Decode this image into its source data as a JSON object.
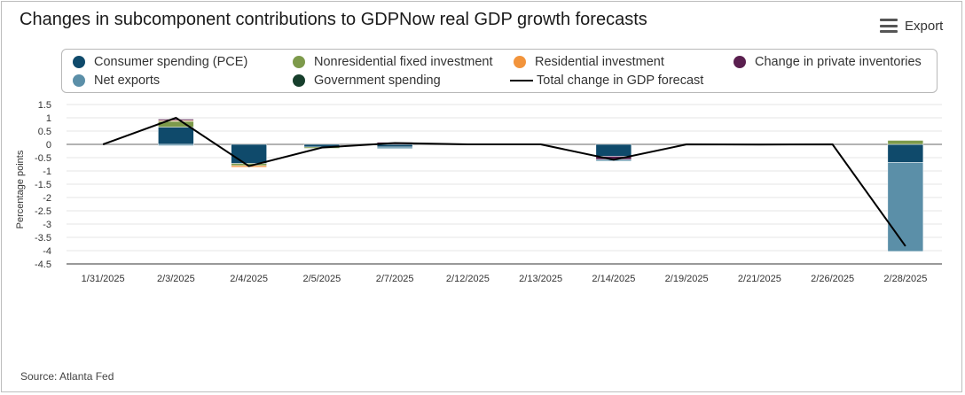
{
  "title": "Changes in subcomponent contributions to GDPNow real GDP growth forecasts",
  "export_label": "Export",
  "export_icon": "menu-icon",
  "source": "Source: Atlanta Fed",
  "legend": [
    {
      "name": "Consumer spending (PCE)",
      "color": "#0f4a6b"
    },
    {
      "name": "Nonresidential fixed investment",
      "color": "#7d9a4b"
    },
    {
      "name": "Residential investment",
      "color": "#f2943c"
    },
    {
      "name": "Change in private inventories",
      "color": "#5a1f4f"
    },
    {
      "name": "Net exports",
      "color": "#5b8fa8"
    },
    {
      "name": "Government spending",
      "color": "#173f2c"
    },
    {
      "name": "Total change in GDP forecast",
      "color": "#000000"
    }
  ],
  "chart_data": {
    "type": "bar",
    "stacked": true,
    "title": "Changes in subcomponent contributions to GDPNow real GDP growth forecasts",
    "xlabel": "",
    "ylabel": "Percentage points",
    "ylim": [
      -4.5,
      1.5
    ],
    "yticks": [
      1.5,
      1,
      0.5,
      0,
      -0.5,
      -1,
      -1.5,
      -2,
      -2.5,
      -3,
      -3.5,
      -4,
      -4.5
    ],
    "categories": [
      "1/31/2025",
      "2/3/2025",
      "2/4/2025",
      "2/5/2025",
      "2/7/2025",
      "2/12/2025",
      "2/13/2025",
      "2/14/2025",
      "2/19/2025",
      "2/21/2025",
      "2/26/2025",
      "2/28/2025"
    ],
    "series": [
      {
        "name": "Consumer spending (PCE)",
        "color": "#0f4a6b",
        "values": [
          0,
          0.65,
          -0.72,
          -0.1,
          -0.1,
          0,
          0,
          -0.45,
          0,
          0,
          0,
          -0.68
        ]
      },
      {
        "name": "Nonresidential fixed investment",
        "color": "#7d9a4b",
        "values": [
          0,
          0.22,
          -0.08,
          -0.05,
          0,
          0,
          0,
          0,
          0,
          0,
          0,
          0.15
        ]
      },
      {
        "name": "Residential investment",
        "color": "#f2943c",
        "values": [
          0,
          0.03,
          -0.06,
          0,
          0,
          0,
          0,
          0,
          0,
          0,
          0,
          0
        ]
      },
      {
        "name": "Change in private inventories",
        "color": "#5a1f4f",
        "values": [
          0,
          0.05,
          0,
          0,
          0.08,
          0,
          0,
          -0.12,
          0,
          0,
          0,
          0
        ]
      },
      {
        "name": "Net exports",
        "color": "#5b8fa8",
        "values": [
          0,
          -0.05,
          0,
          0,
          -0.06,
          0,
          0,
          -0.06,
          0,
          0,
          0,
          -3.35
        ]
      },
      {
        "name": "Government spending",
        "color": "#173f2c",
        "values": [
          0,
          0,
          0,
          0,
          0,
          0,
          0,
          0,
          0,
          0,
          0,
          0
        ]
      }
    ],
    "line": {
      "name": "Total change in GDP forecast",
      "color": "#000000",
      "values": [
        0,
        1.0,
        -0.82,
        -0.12,
        0.05,
        0,
        0,
        -0.58,
        0,
        -0.01,
        0,
        -3.83
      ]
    },
    "grid": true,
    "legend_position": "top"
  }
}
